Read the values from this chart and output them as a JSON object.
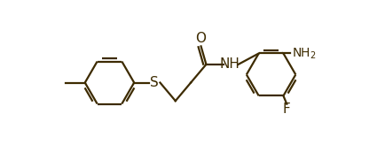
{
  "bg_color": "#ffffff",
  "bond_color": "#3d2b00",
  "atom_color": "#3d2b00",
  "line_width": 1.6,
  "figsize": [
    4.25,
    1.89
  ],
  "dpi": 100,
  "xlim": [
    0,
    425
  ],
  "ylim": [
    0,
    189
  ]
}
